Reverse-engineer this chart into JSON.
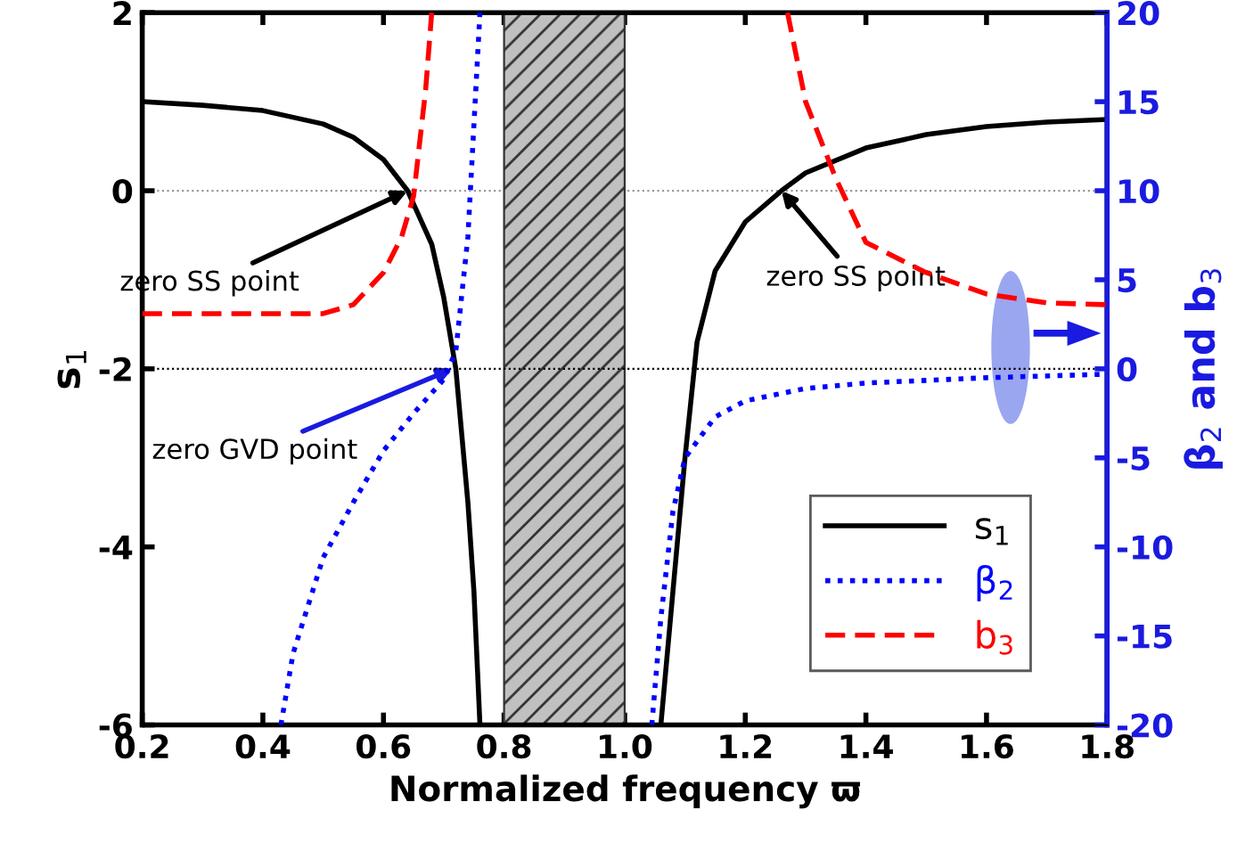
{
  "chart_data": {
    "type": "line",
    "xlabel": "Normalized frequency ϖ",
    "ylabel": "s$_{1}$",
    "y2label": "β$_{2}$ and b$_{3}$",
    "xlim": [
      0.2,
      1.8
    ],
    "xticks": [
      0.2,
      0.4,
      0.6,
      0.8,
      {
        "value": 1.0,
        "label": "1.0"
      },
      1.2,
      1.4,
      1.6,
      1.8
    ],
    "ylim": [
      -6,
      2
    ],
    "yticks": [
      -6,
      -4,
      -2,
      0,
      2
    ],
    "y2lim": [
      -20,
      20
    ],
    "y2ticks": [
      -20,
      -15,
      -10,
      -5,
      0,
      5,
      10,
      15,
      20
    ],
    "grid": false,
    "legend": "bottom right",
    "series": [
      {
        "name": "s$_{1}$",
        "color": "#000000",
        "line_style": "solid",
        "x": [
          0.2,
          0.3,
          0.4,
          0.5,
          0.55,
          0.6,
          0.64,
          0.68,
          0.7,
          0.72,
          0.74,
          0.75,
          0.76,
          null,
          1.06,
          1.08,
          1.1,
          1.12,
          1.15,
          1.2,
          1.26,
          1.3,
          1.4,
          1.5,
          1.6,
          1.7,
          1.8
        ],
        "values": [
          1.0,
          0.96,
          0.9,
          0.75,
          0.6,
          0.35,
          0,
          -0.6,
          -1.2,
          -2,
          -3.5,
          -4.5,
          -6,
          null,
          -6,
          -4.5,
          -3,
          -1.7,
          -0.9,
          -0.35,
          0,
          0.2,
          0.48,
          0.63,
          0.72,
          0.77,
          0.8
        ]
      },
      {
        "name": "β$_{2}$",
        "color": "#0000ff",
        "line_style": "dotted",
        "axis": "y2",
        "x": [
          0.43,
          0.45,
          0.5,
          0.55,
          0.6,
          0.65,
          0.7,
          0.72,
          0.74,
          0.76,
          null,
          1.045,
          1.06,
          1.08,
          1.1,
          1.15,
          1.2,
          1.3,
          1.4,
          1.6,
          1.8
        ],
        "values": [
          -20,
          -16,
          -10.6,
          -7.5,
          -4.6,
          -2.5,
          -0.6,
          1,
          7.4,
          20,
          null,
          -20,
          -14,
          -8,
          -5,
          -2.7,
          -1.8,
          -1.1,
          -0.8,
          -0.5,
          -0.3
        ]
      },
      {
        "name": "b$_{3}$",
        "color": "#ff0000",
        "line_style": "dashed",
        "axis": "y2",
        "x": [
          0.2,
          0.5,
          0.55,
          0.6,
          0.63,
          0.65,
          0.67,
          0.68,
          null,
          1.27,
          1.3,
          1.35,
          1.4,
          1.5,
          1.6,
          1.7,
          1.8
        ],
        "values": [
          3.1,
          3.1,
          3.6,
          5.4,
          7.4,
          9.7,
          15.7,
          20,
          null,
          20,
          15,
          10.7,
          7.1,
          5.4,
          4.2,
          3.7,
          3.6
        ]
      }
    ],
    "ref_lines": [
      {
        "axis": "y",
        "value": 0,
        "color": "#999999",
        "line_style": "dotted"
      },
      {
        "axis": "y2",
        "value": 0,
        "color": "#000000",
        "line_style": "dotted"
      }
    ],
    "bands": [
      {
        "axis": "x",
        "from": 0.8,
        "to": 1.0,
        "color": "#c0c0c0"
      }
    ],
    "annotations": [
      {
        "text": "zero SS point",
        "x": 0.64,
        "y": 0
      },
      {
        "text": "zero GVD point",
        "x": 0.715,
        "y": -2
      },
      {
        "text": "zero SS point",
        "x": 1.26,
        "y": 0
      }
    ]
  }
}
